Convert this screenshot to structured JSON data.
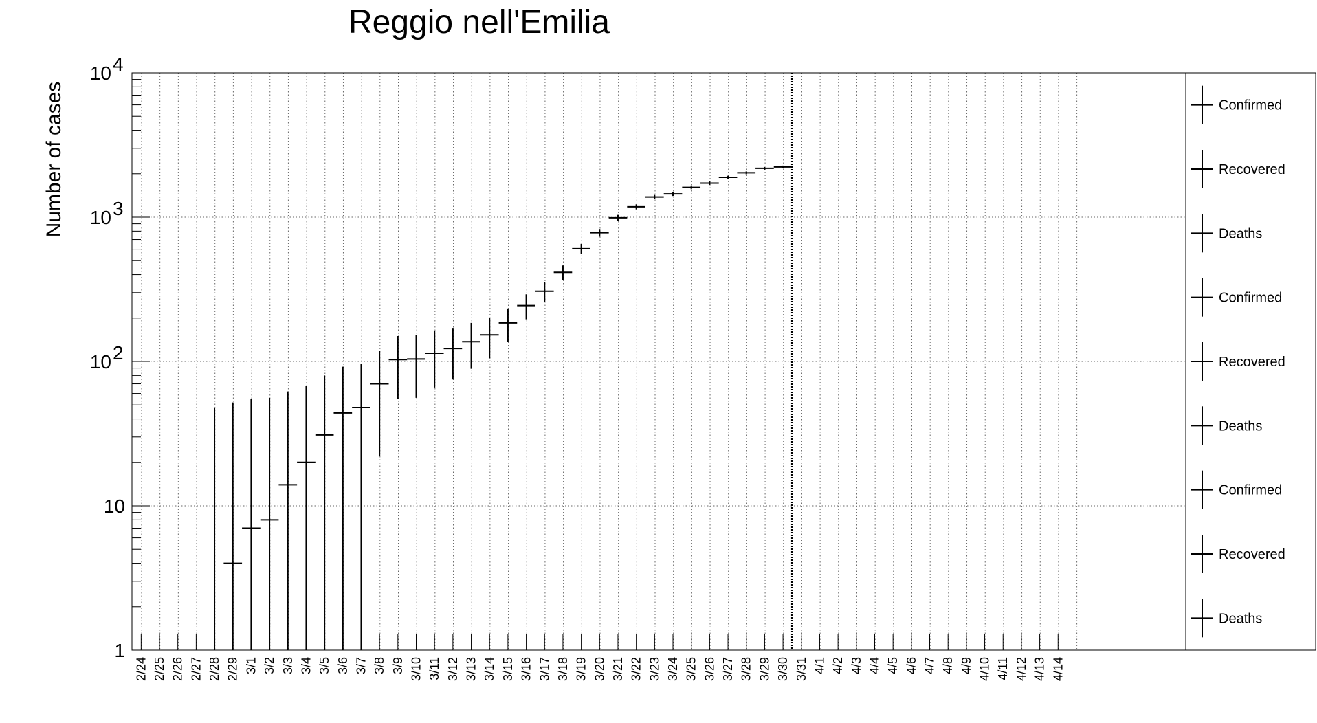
{
  "chart_data": {
    "type": "scatter",
    "title": "Reggio nell'Emilia",
    "xlabel": "",
    "ylabel": "Number of cases",
    "yscale": "log",
    "ylim": [
      1,
      10000
    ],
    "grid": true,
    "legend_position": "right",
    "y_tick_labels": [
      {
        "value": 1,
        "label": "1"
      },
      {
        "value": 10,
        "label": "10"
      },
      {
        "value": 100,
        "base": "10",
        "exp": "2"
      },
      {
        "value": 1000,
        "base": "10",
        "exp": "3"
      },
      {
        "value": 10000,
        "base": "10",
        "exp": "4"
      }
    ],
    "categories": [
      "2/24",
      "2/25",
      "2/26",
      "2/27",
      "2/28",
      "2/29",
      "3/1",
      "3/2",
      "3/3",
      "3/4",
      "3/5",
      "3/6",
      "3/7",
      "3/8",
      "3/9",
      "3/10",
      "3/11",
      "3/12",
      "3/13",
      "3/14",
      "3/15",
      "3/16",
      "3/17",
      "3/18",
      "3/19",
      "3/20",
      "3/21",
      "3/22",
      "3/23",
      "3/24",
      "3/25",
      "3/26",
      "3/27",
      "3/28",
      "3/29",
      "3/30",
      "3/31",
      "4/1",
      "4/2",
      "4/3",
      "4/4",
      "4/5",
      "4/6",
      "4/7",
      "4/8",
      "4/9",
      "4/10",
      "4/11",
      "4/12",
      "4/13",
      "4/14"
    ],
    "marker_date": "3/30",
    "series": [
      {
        "name": "Confirmed",
        "color": "#000000",
        "points": [
          {
            "x": "2/28",
            "y": 0,
            "err_high": 48
          },
          {
            "x": "2/29",
            "y": 4,
            "err_high": 52
          },
          {
            "x": "3/1",
            "y": 7,
            "err_high": 55
          },
          {
            "x": "3/2",
            "y": 8,
            "err_high": 56
          },
          {
            "x": "3/3",
            "y": 14,
            "err_high": 62
          },
          {
            "x": "3/4",
            "y": 20,
            "err_high": 68
          },
          {
            "x": "3/5",
            "y": 31,
            "err_high": 80
          },
          {
            "x": "3/6",
            "y": 44,
            "err_high": 92
          },
          {
            "x": "3/7",
            "y": 48,
            "err_high": 96
          },
          {
            "x": "3/8",
            "y": 70,
            "err_high": 118,
            "err_low": 22
          },
          {
            "x": "3/9",
            "y": 103,
            "err_high": 150,
            "err_low": 55
          },
          {
            "x": "3/10",
            "y": 104,
            "err_high": 152,
            "err_low": 56
          },
          {
            "x": "3/11",
            "y": 114,
            "err_high": 162,
            "err_low": 66
          },
          {
            "x": "3/12",
            "y": 123,
            "err_high": 171,
            "err_low": 75
          },
          {
            "x": "3/13",
            "y": 137,
            "err_high": 185,
            "err_low": 89
          },
          {
            "x": "3/14",
            "y": 153,
            "err_high": 201,
            "err_low": 105
          },
          {
            "x": "3/15",
            "y": 185,
            "err_high": 233,
            "err_low": 137
          },
          {
            "x": "3/16",
            "y": 244,
            "err_high": 292,
            "err_low": 196
          },
          {
            "x": "3/17",
            "y": 307,
            "err_high": 355,
            "err_low": 259
          },
          {
            "x": "3/18",
            "y": 415,
            "err_high": 463,
            "err_low": 367
          },
          {
            "x": "3/19",
            "y": 605,
            "err_high": 653,
            "err_low": 557
          },
          {
            "x": "3/20",
            "y": 780,
            "err_high": 828,
            "err_low": 732
          },
          {
            "x": "3/21",
            "y": 990,
            "err_high": 1038,
            "err_low": 942
          },
          {
            "x": "3/22",
            "y": 1180,
            "err_high": 1228,
            "err_low": 1132
          },
          {
            "x": "3/23",
            "y": 1380,
            "err_high": 1428,
            "err_low": 1332
          },
          {
            "x": "3/24",
            "y": 1450,
            "err_high": 1498,
            "err_low": 1402
          },
          {
            "x": "3/25",
            "y": 1610,
            "err_high": 1658,
            "err_low": 1562
          },
          {
            "x": "3/26",
            "y": 1720,
            "err_high": 1768,
            "err_low": 1672
          },
          {
            "x": "3/27",
            "y": 1890,
            "err_high": 1938,
            "err_low": 1842
          },
          {
            "x": "3/28",
            "y": 2030,
            "err_high": 2078,
            "err_low": 1982
          },
          {
            "x": "3/29",
            "y": 2180,
            "err_high": 2228,
            "err_low": 2132
          },
          {
            "x": "3/30",
            "y": 2230,
            "err_high": 2278,
            "err_low": 2182
          }
        ]
      }
    ],
    "legend_entries": [
      "Confirmed",
      "Recovered",
      "Deaths",
      "Confirmed",
      "Recovered",
      "Deaths",
      "Confirmed",
      "Recovered",
      "Deaths"
    ]
  }
}
